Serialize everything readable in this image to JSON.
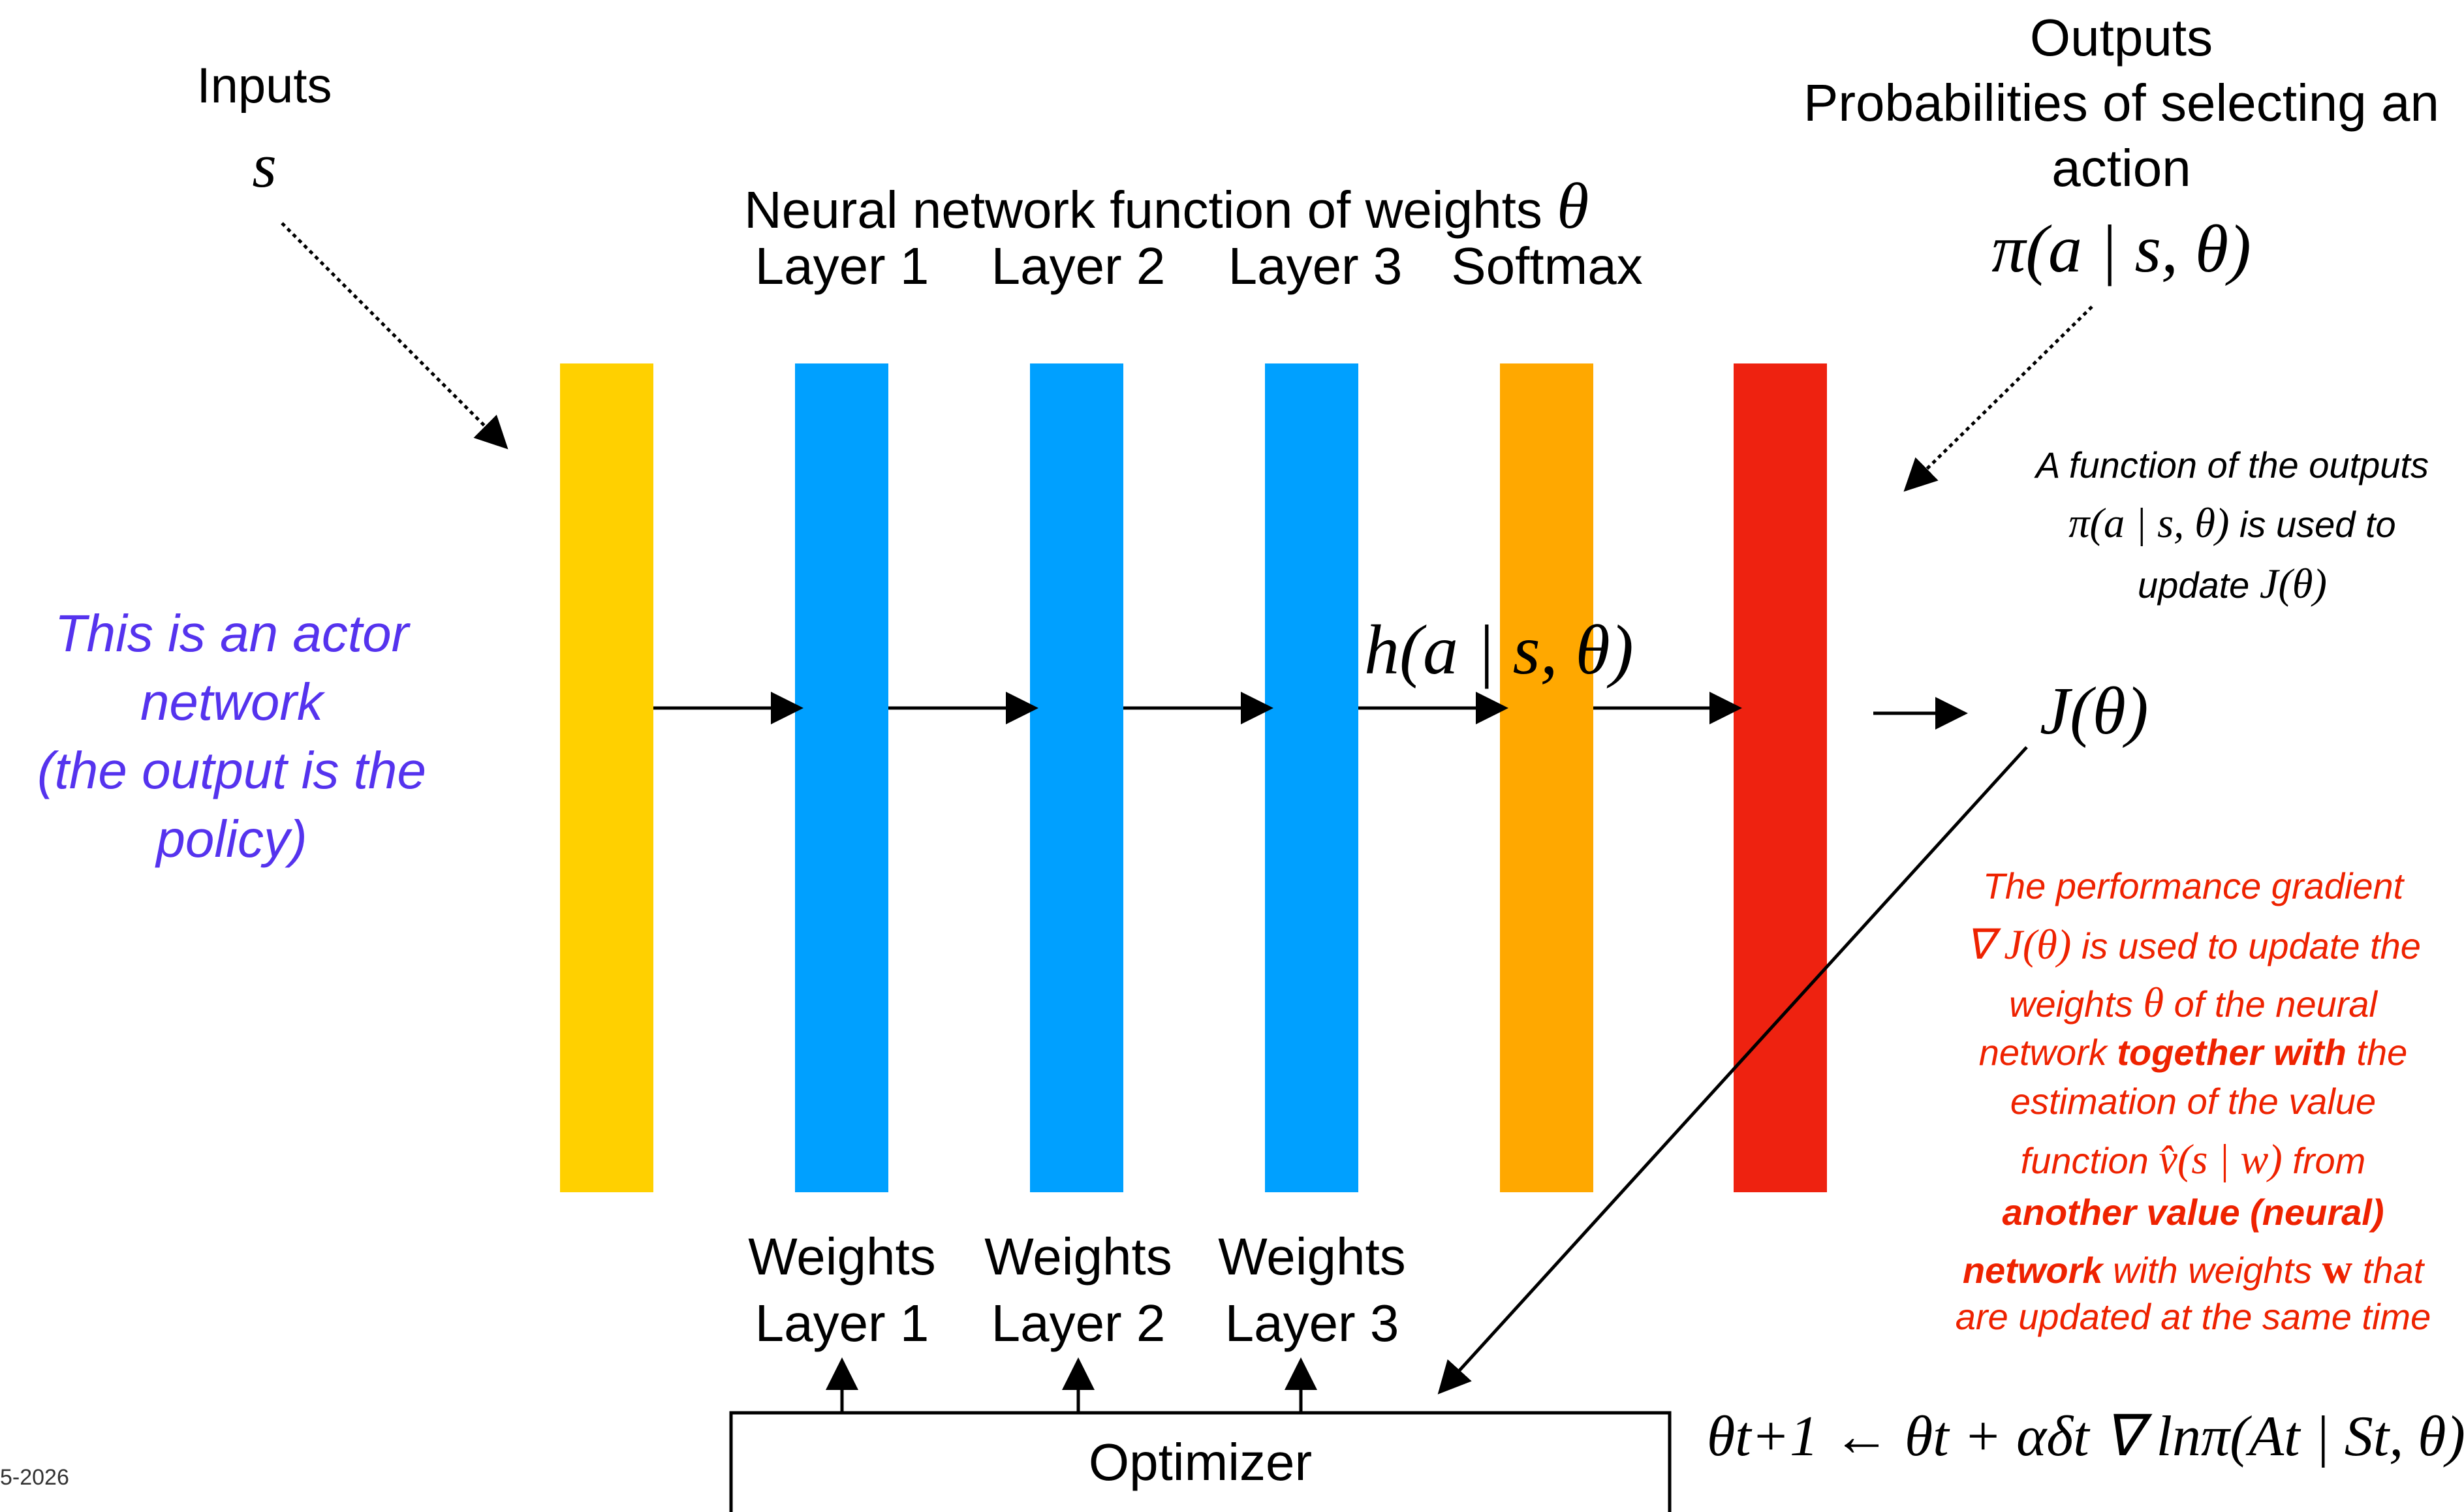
{
  "inputs": {
    "title": "Inputs",
    "symbol": "s"
  },
  "network": {
    "title": "Neural network function of weights",
    "theta": "θ",
    "layer_labels": [
      "Layer 1",
      "Layer 2",
      "Layer 3",
      "Softmax"
    ],
    "preference_label": "h(a | s, θ)"
  },
  "outputs": {
    "title": "Outputs",
    "subtitle_line1": "Probabilities of selecting an",
    "subtitle_line2": "action",
    "policy": "π(a | s, θ)"
  },
  "objective": "J(θ)",
  "actor_note": [
    "This is an actor",
    "network",
    "(the output is the",
    "policy)"
  ],
  "function_note": {
    "line1": "A function of the outputs",
    "line2_math": "π(a | s, θ)",
    "line2_text": " is used to",
    "line3_text": "update ",
    "line3_math": "J(θ)"
  },
  "gradient_note": {
    "l1": "The performance gradient",
    "l2_math": "∇ J(θ)",
    "l2_text": " is used to update the",
    "l3_a": "weights ",
    "l3_math": "θ",
    "l3_b": " of the neural",
    "l4_a": "network ",
    "l4_bold": "together with",
    "l4_b": " the",
    "l5": "estimation of the value",
    "l6_a": "function ",
    "l6_math": "v̂(s | w)",
    "l6_b": " from",
    "l7_bold": "another value (neural)",
    "l8_bold": "network",
    "l8_a": " with weights ",
    "l8_math": "w",
    "l8_b": " that",
    "l9": "are updated at the same time"
  },
  "weights_labels": [
    {
      "line1": "Weights",
      "line2": "Layer 1"
    },
    {
      "line1": "Weights",
      "line2": "Layer 2"
    },
    {
      "line1": "Weights",
      "line2": "Layer 3"
    }
  ],
  "optimizer": {
    "label": "Optimizer"
  },
  "update_rule": "θt+1 ← θt + αδt ∇ lnπ(At | St, θ)",
  "footer_fragment": "5-2026",
  "colors": {
    "input_layer": "#ffd000",
    "hidden_layers": "#00a0ff",
    "softmax_layer": "#ffa800",
    "output_layer": "#ee2210",
    "actor_note": "#5533ee",
    "gradient_note": "#ee2200"
  }
}
